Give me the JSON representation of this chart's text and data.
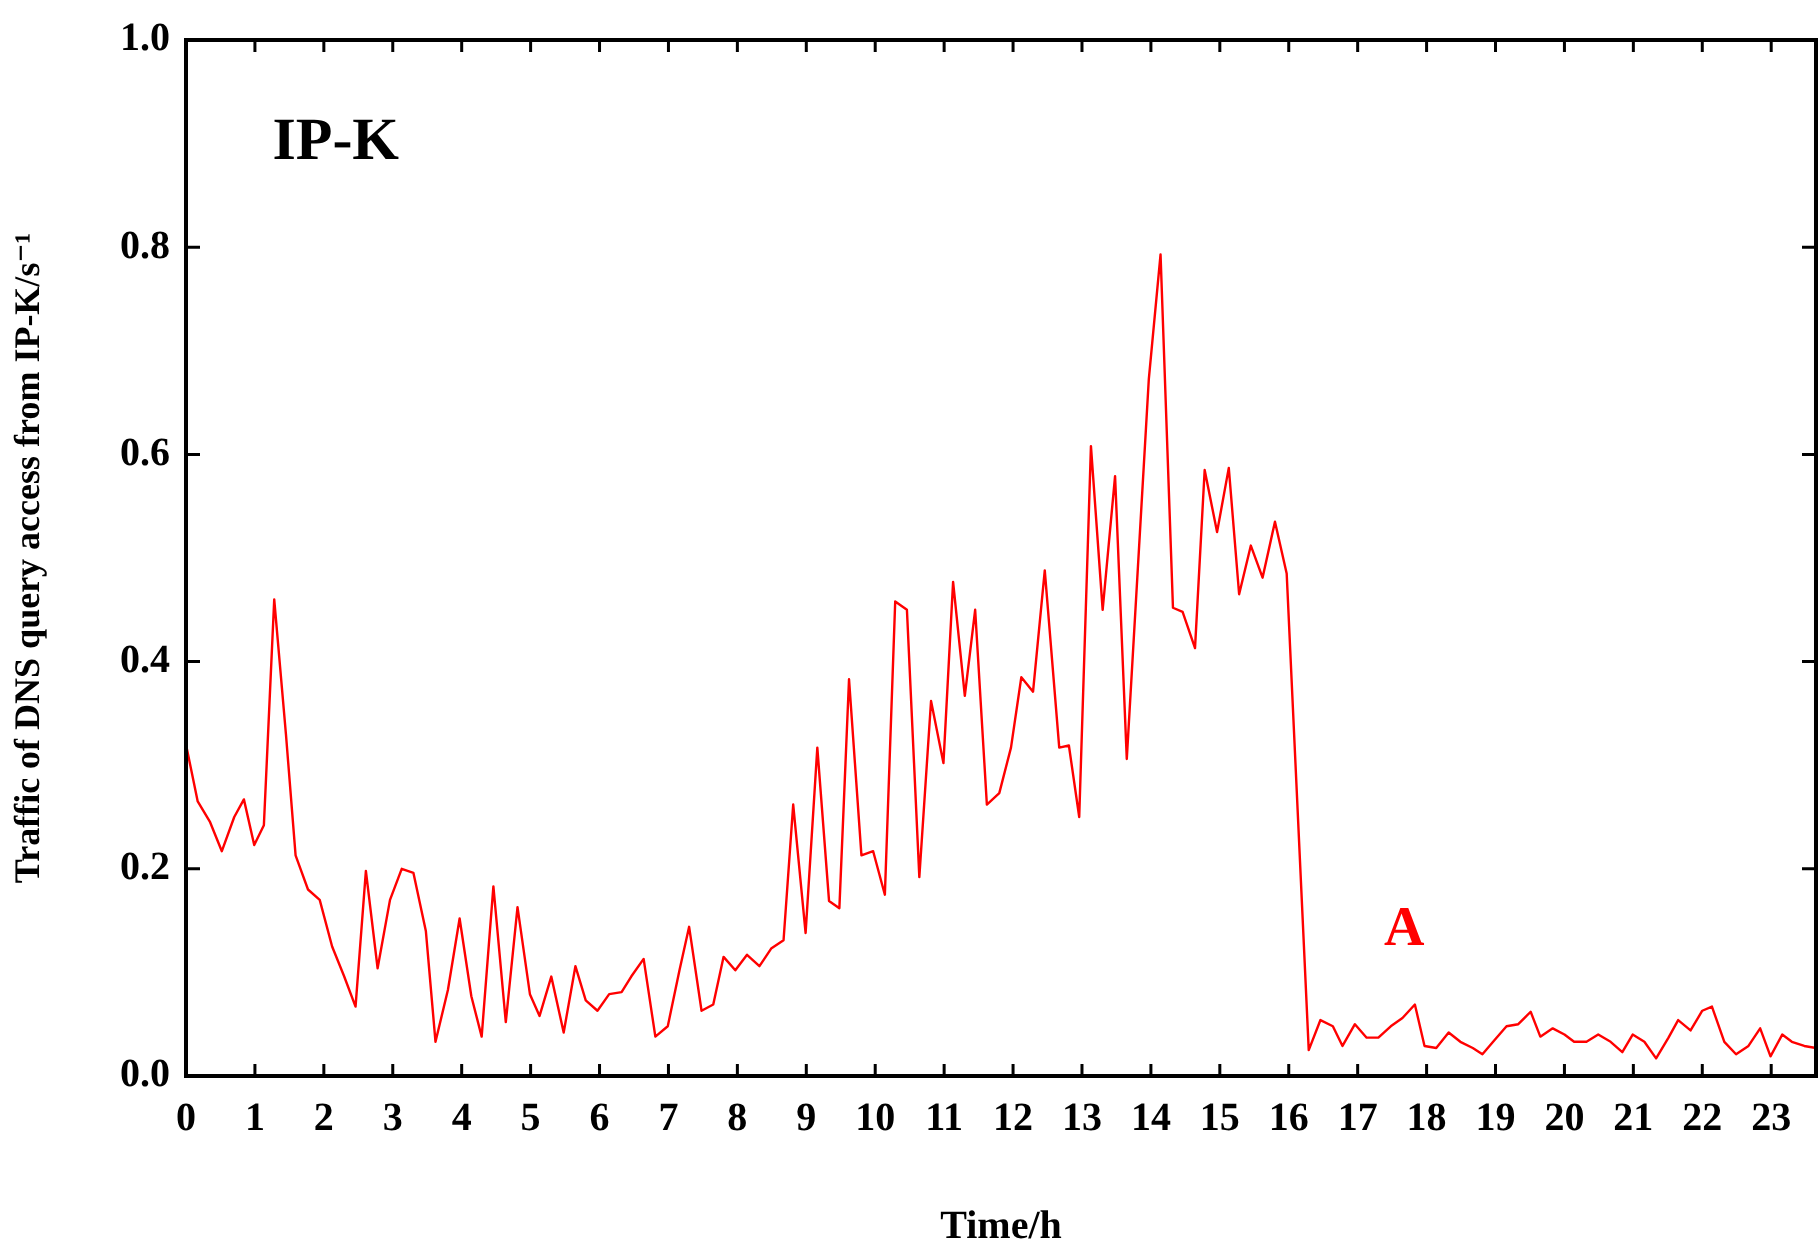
{
  "chart_data": {
    "type": "line",
    "xlabel": "Time/h",
    "ylabel": "Traffic of DNS query access from IP-K/s⁻¹",
    "annotations": [
      "IP-K",
      "A"
    ],
    "xlim": [
      0,
      23.65
    ],
    "xticks": [
      0,
      1,
      2,
      3,
      4,
      5,
      6,
      7,
      8,
      9,
      10,
      11,
      12,
      13,
      14,
      15,
      16,
      17,
      18,
      19,
      20,
      21,
      22,
      23
    ],
    "ylim": [
      0,
      1
    ],
    "yticks": [
      {
        "value": 0,
        "label": "0.0"
      },
      {
        "value": 0.2,
        "label": "0.2"
      },
      {
        "value": 0.4,
        "label": "0.4"
      },
      {
        "value": 0.6,
        "label": "0.6"
      },
      {
        "value": 0.8,
        "label": "0.8"
      },
      {
        "value": 1,
        "label": "1.0"
      }
    ],
    "grid": false,
    "legend": false,
    "marker": "none",
    "line_style": "solid",
    "series": [
      {
        "color": "#ff0000",
        "x": [
          0,
          0.17,
          0.35,
          0.52,
          0.7,
          0.84,
          0.99,
          1.13,
          1.28,
          1.45,
          1.59,
          1.77,
          1.94,
          2.12,
          2.29,
          2.46,
          2.61,
          2.78,
          2.96,
          3.13,
          3.3,
          3.48,
          3.62,
          3.8,
          3.97,
          4.14,
          4.29,
          4.46,
          4.64,
          4.81,
          4.99,
          5.13,
          5.3,
          5.48,
          5.65,
          5.8,
          5.97,
          6.14,
          6.32,
          6.46,
          6.64,
          6.81,
          6.99,
          7.16,
          7.3,
          7.48,
          7.65,
          7.8,
          7.97,
          8.14,
          8.32,
          8.49,
          8.67,
          8.81,
          8.99,
          9.16,
          9.33,
          9.48,
          9.62,
          9.8,
          9.97,
          10.14,
          10.29,
          10.46,
          10.64,
          10.81,
          10.99,
          11.13,
          11.3,
          11.45,
          11.62,
          11.8,
          11.97,
          12.12,
          12.29,
          12.46,
          12.67,
          12.81,
          12.96,
          13.13,
          13.3,
          13.48,
          13.65,
          13.97,
          14.14,
          14.32,
          14.46,
          14.64,
          14.78,
          14.96,
          15.13,
          15.28,
          15.45,
          15.62,
          15.8,
          15.97,
          16.29,
          16.46,
          16.64,
          16.78,
          16.96,
          17.13,
          17.3,
          17.48,
          17.65,
          17.83,
          17.97,
          18.14,
          18.32,
          18.49,
          18.67,
          18.81,
          18.99,
          19.16,
          19.33,
          19.51,
          19.65,
          19.83,
          20.0,
          20.14,
          20.32,
          20.49,
          20.67,
          20.84,
          20.99,
          21.16,
          21.33,
          21.51,
          21.65,
          21.83,
          22.0,
          22.14,
          22.32,
          22.49,
          22.67,
          22.84,
          22.99,
          23.16,
          23.3,
          23.48,
          23.65
        ],
        "values": [
          0.32,
          0.265,
          0.245,
          0.217,
          0.25,
          0.267,
          0.223,
          0.242,
          0.46,
          0.33,
          0.213,
          0.18,
          0.17,
          0.125,
          0.097,
          0.067,
          0.198,
          0.104,
          0.17,
          0.2,
          0.196,
          0.14,
          0.033,
          0.083,
          0.152,
          0.077,
          0.038,
          0.183,
          0.052,
          0.163,
          0.079,
          0.058,
          0.096,
          0.042,
          0.106,
          0.073,
          0.063,
          0.079,
          0.081,
          0.096,
          0.113,
          0.038,
          0.048,
          0.102,
          0.144,
          0.063,
          0.069,
          0.115,
          0.102,
          0.117,
          0.106,
          0.123,
          0.131,
          0.262,
          0.138,
          0.317,
          0.169,
          0.162,
          0.383,
          0.213,
          0.217,
          0.175,
          0.458,
          0.45,
          0.192,
          0.362,
          0.302,
          0.477,
          0.367,
          0.45,
          0.262,
          0.273,
          0.317,
          0.385,
          0.371,
          0.488,
          0.317,
          0.319,
          0.25,
          0.608,
          0.45,
          0.579,
          0.306,
          0.673,
          0.793,
          0.452,
          0.448,
          0.413,
          0.585,
          0.525,
          0.587,
          0.465,
          0.512,
          0.481,
          0.535,
          0.485,
          0.025,
          0.054,
          0.048,
          0.029,
          0.05,
          0.037,
          0.037,
          0.048,
          0.056,
          0.069,
          0.029,
          0.027,
          0.042,
          0.033,
          0.027,
          0.021,
          0.035,
          0.048,
          0.05,
          0.062,
          0.038,
          0.046,
          0.04,
          0.033,
          0.033,
          0.04,
          0.033,
          0.023,
          0.04,
          0.033,
          0.017,
          0.037,
          0.054,
          0.044,
          0.063,
          0.067,
          0.033,
          0.021,
          0.029,
          0.046,
          0.019,
          0.04,
          0.033,
          0.029,
          0.027
        ]
      }
    ]
  }
}
